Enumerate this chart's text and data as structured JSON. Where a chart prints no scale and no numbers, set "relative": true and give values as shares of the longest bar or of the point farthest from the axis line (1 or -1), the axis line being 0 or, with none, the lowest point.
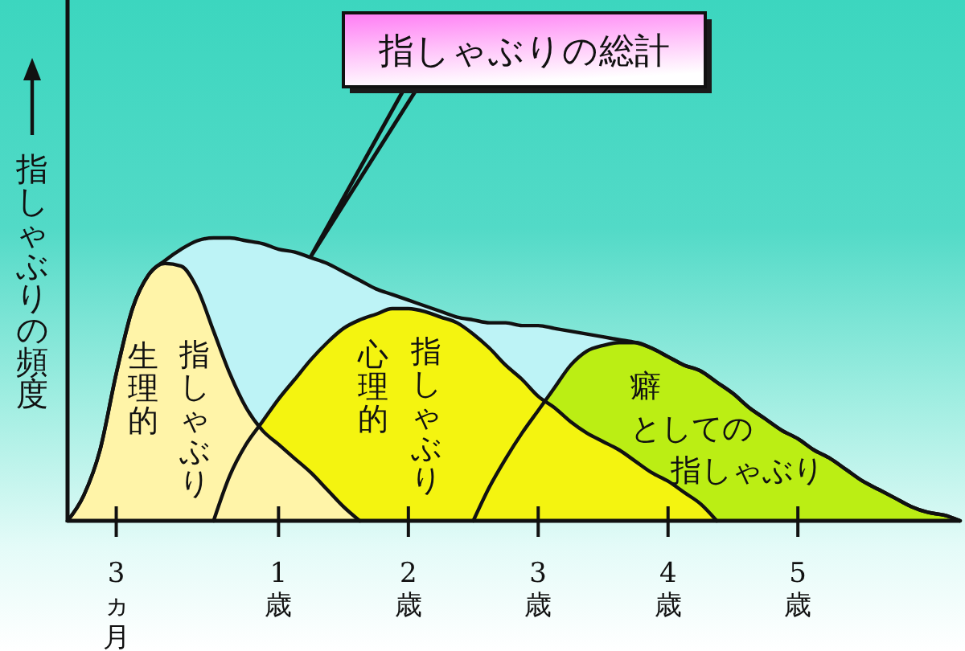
{
  "chart_data": {
    "type": "area",
    "relative": true,
    "ylabel": "指しゃぶりの頻度",
    "categories": [
      null,
      null,
      null,
      "3ヵ月",
      null,
      null,
      null,
      null,
      null,
      null,
      null,
      null,
      null,
      "1歳",
      null,
      null,
      null,
      null,
      null,
      null,
      null,
      "2歳",
      null,
      null,
      null,
      null,
      null,
      null,
      null,
      "3歳",
      null,
      null,
      null,
      null,
      null,
      null,
      null,
      "4歳",
      null,
      null,
      null,
      null,
      null,
      null,
      null,
      "5歳",
      null,
      null,
      null,
      null,
      null,
      null,
      null,
      null,
      null,
      null
    ],
    "annotations": [
      "指しゃぶりの総計"
    ],
    "series": [
      {
        "color": "#bdf3f6",
        "values": [
          0,
          0.09,
          0.25,
          0.52,
          0.75,
          0.87,
          0.92,
          0.96,
          0.99,
          1,
          1,
          0.99,
          0.98,
          0.96,
          0.95,
          0.93,
          0.91,
          0.88,
          0.85,
          0.82,
          0.8,
          0.78,
          0.76,
          0.74,
          0.72,
          0.71,
          0.7,
          0.7,
          0.69,
          0.69,
          0.68,
          0.67,
          0.66,
          0.65,
          0.64,
          0.63,
          0.61,
          0.58,
          0.55,
          0.53,
          0.49,
          0.45,
          0.4,
          0.36,
          0.32,
          0.29,
          0.25,
          0.22,
          0.18,
          0.14,
          0.11,
          0.08,
          0.05,
          0.03,
          0.02,
          0
        ]
      },
      {
        "name": "生理的指しゃぶり",
        "color": "#fff4a8",
        "values": [
          0,
          0.09,
          0.25,
          0.52,
          0.75,
          0.87,
          0.91,
          0.9,
          0.82,
          0.67,
          0.52,
          0.4,
          0.32,
          0.27,
          0.22,
          0.17,
          0.11,
          0.05,
          0,
          null,
          null,
          null,
          null,
          null,
          null,
          null,
          null,
          null,
          null,
          null,
          null,
          null,
          null,
          null,
          null,
          null,
          null,
          null,
          null,
          null,
          null,
          null,
          null,
          null,
          null,
          null,
          null,
          null,
          null,
          null,
          null,
          null,
          null,
          null,
          null,
          null
        ]
      },
      {
        "name": "心理的指しゃぶり",
        "color": "#f4f410",
        "values": [
          null,
          null,
          null,
          null,
          null,
          null,
          null,
          null,
          null,
          0,
          0.16,
          0.27,
          0.35,
          0.43,
          0.5,
          0.57,
          0.63,
          0.68,
          0.71,
          0.73,
          0.75,
          0.75,
          0.74,
          0.72,
          0.7,
          0.66,
          0.61,
          0.55,
          0.5,
          0.44,
          0.4,
          0.35,
          0.31,
          0.28,
          0.25,
          0.21,
          0.17,
          0.14,
          0.1,
          0.06,
          0,
          null,
          null,
          null,
          null,
          null,
          null,
          null,
          null,
          null,
          null,
          null,
          null,
          null,
          null,
          null
        ]
      },
      {
        "name": "癖としての指しゃぶり",
        "color": "#bbee14",
        "values": [
          null,
          null,
          null,
          null,
          null,
          null,
          null,
          null,
          null,
          null,
          null,
          null,
          null,
          null,
          null,
          null,
          null,
          null,
          null,
          null,
          null,
          null,
          null,
          null,
          null,
          0,
          0.12,
          0.22,
          0.31,
          0.39,
          0.47,
          0.55,
          0.6,
          0.62,
          0.63,
          0.63,
          0.61,
          0.58,
          0.55,
          0.53,
          0.49,
          0.45,
          0.4,
          0.36,
          0.32,
          0.29,
          0.25,
          0.22,
          0.18,
          0.14,
          0.11,
          0.08,
          0.05,
          0.03,
          0.02,
          0
        ]
      }
    ]
  }
}
